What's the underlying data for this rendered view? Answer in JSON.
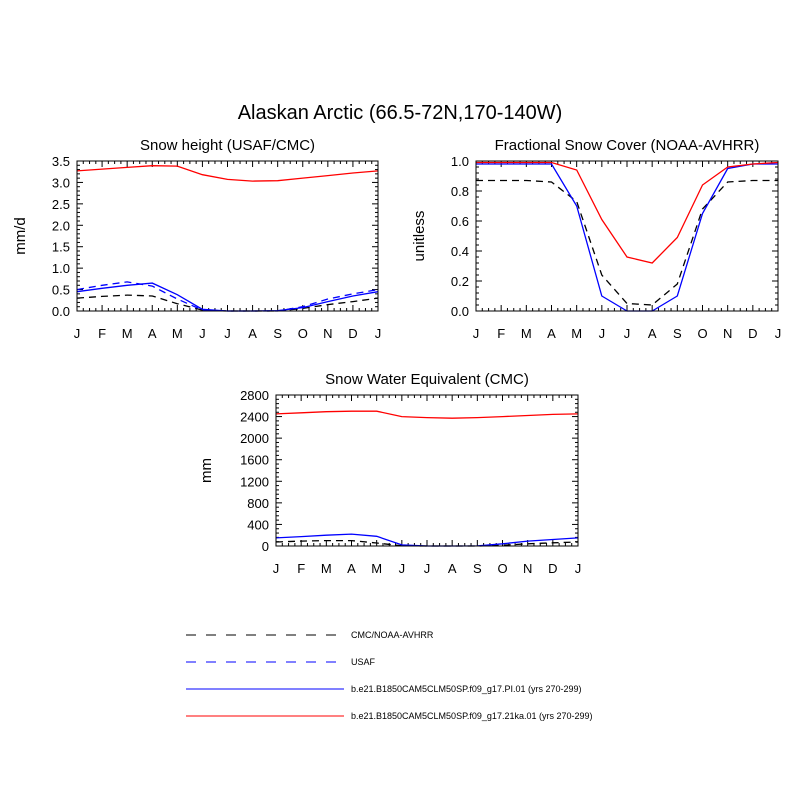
{
  "figure": {
    "title": "Alaskan Arctic (66.5-72N,170-140W)"
  },
  "chart_data": [
    {
      "type": "line",
      "title": "Snow height (USAF/CMC)",
      "ylabel": "mm/d",
      "ylim": [
        0,
        3.5
      ],
      "yticks": [
        "0.0",
        "0.5",
        "1.0",
        "1.5",
        "2.0",
        "2.5",
        "3.0",
        "3.5"
      ],
      "categories": [
        "J",
        "F",
        "M",
        "A",
        "M",
        "J",
        "J",
        "A",
        "S",
        "O",
        "N",
        "D",
        "J"
      ],
      "series": [
        {
          "name": "CMC/NOAA-AVHRR",
          "color": "#000000",
          "dash": "dash",
          "values": [
            0.3,
            0.34,
            0.37,
            0.35,
            0.17,
            0.02,
            0.0,
            0.0,
            0.0,
            0.06,
            0.15,
            0.22,
            0.3
          ]
        },
        {
          "name": "USAF",
          "color": "#0000ff",
          "dash": "dash",
          "values": [
            0.5,
            0.6,
            0.68,
            0.58,
            0.28,
            0.02,
            0.0,
            0.0,
            0.0,
            0.1,
            0.28,
            0.4,
            0.5
          ]
        },
        {
          "name": "b.e21.B1850CAM5CLM50SP.f09_g17.PI.01 (yrs 270-299)",
          "color": "#0000ff",
          "dash": "solid",
          "values": [
            0.45,
            0.53,
            0.6,
            0.65,
            0.38,
            0.04,
            0.0,
            0.0,
            0.01,
            0.08,
            0.22,
            0.35,
            0.45
          ]
        },
        {
          "name": "b.e21.B1850CAM5CLM50SP.f09_g17.21ka.01 (yrs 270-299)",
          "color": "#ff0000",
          "dash": "solid",
          "values": [
            3.27,
            3.31,
            3.35,
            3.39,
            3.38,
            3.18,
            3.07,
            3.03,
            3.04,
            3.1,
            3.16,
            3.22,
            3.27
          ]
        }
      ]
    },
    {
      "type": "line",
      "title": "Fractional Snow Cover (NOAA-AVHRR)",
      "ylabel": "unitless",
      "ylim": [
        0,
        1.0
      ],
      "yticks": [
        "0.0",
        "0.2",
        "0.4",
        "0.6",
        "0.8",
        "1.0"
      ],
      "categories": [
        "J",
        "F",
        "M",
        "A",
        "M",
        "J",
        "J",
        "A",
        "S",
        "O",
        "N",
        "D",
        "J"
      ],
      "series": [
        {
          "name": "CMC/NOAA-AVHRR",
          "color": "#000000",
          "dash": "dash",
          "values": [
            0.87,
            0.87,
            0.87,
            0.86,
            0.73,
            0.24,
            0.05,
            0.04,
            0.18,
            0.68,
            0.86,
            0.87,
            0.87
          ]
        },
        {
          "name": "b.e21.B1850CAM5CLM50SP.f09_g17.PI.01 (yrs 270-299)",
          "color": "#0000ff",
          "dash": "solid",
          "values": [
            0.98,
            0.98,
            0.98,
            0.98,
            0.7,
            0.1,
            0.0,
            0.0,
            0.1,
            0.65,
            0.95,
            0.98,
            0.98
          ]
        },
        {
          "name": "b.e21.B1850CAM5CLM50SP.f09_g17.21ka.01 (yrs 270-299)",
          "color": "#ff0000",
          "dash": "solid",
          "values": [
            0.99,
            0.99,
            0.99,
            0.99,
            0.94,
            0.61,
            0.36,
            0.32,
            0.49,
            0.84,
            0.96,
            0.98,
            0.99
          ]
        }
      ]
    },
    {
      "type": "line",
      "title": "Snow Water Equivalent (CMC)",
      "ylabel": "mm",
      "ylim": [
        0,
        2800
      ],
      "yticks": [
        "0",
        "400",
        "800",
        "1200",
        "1600",
        "2000",
        "2400",
        "2800"
      ],
      "categories": [
        "J",
        "F",
        "M",
        "A",
        "M",
        "J",
        "J",
        "A",
        "S",
        "O",
        "N",
        "D",
        "J"
      ],
      "series": [
        {
          "name": "CMC/NOAA-AVHRR",
          "color": "#000000",
          "dash": "dash",
          "values": [
            75,
            90,
            100,
            100,
            55,
            4,
            0,
            0,
            0,
            15,
            40,
            60,
            75
          ]
        },
        {
          "name": "b.e21.B1850CAM5CLM50SP.f09_g17.PI.01 (yrs 270-299)",
          "color": "#0000ff",
          "dash": "solid",
          "values": [
            150,
            175,
            200,
            220,
            180,
            20,
            0,
            0,
            2,
            40,
            90,
            120,
            150
          ]
        },
        {
          "name": "b.e21.B1850CAM5CLM50SP.f09_g17.21ka.01 (yrs 270-299)",
          "color": "#ff0000",
          "dash": "solid",
          "values": [
            2450,
            2470,
            2490,
            2500,
            2500,
            2400,
            2380,
            2370,
            2380,
            2400,
            2420,
            2440,
            2450
          ]
        }
      ]
    }
  ],
  "legend": {
    "placement": "bottom-center",
    "entries": [
      {
        "label": "CMC/NOAA-AVHRR",
        "color": "#000000",
        "dash": "dash"
      },
      {
        "label": "USAF",
        "color": "#0000ff",
        "dash": "dash"
      },
      {
        "label": "b.e21.B1850CAM5CLM50SP.f09_g17.PI.01 (yrs 270-299)",
        "color": "#0000ff",
        "dash": "solid"
      },
      {
        "label": "b.e21.B1850CAM5CLM50SP.f09_g17.21ka.01 (yrs 270-299)",
        "color": "#ff0000",
        "dash": "solid"
      }
    ]
  }
}
